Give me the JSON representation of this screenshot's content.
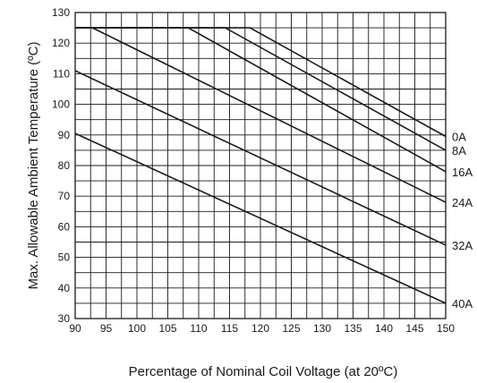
{
  "chart_data": {
    "type": "line",
    "title": "",
    "xlabel": "Percentage of Nominal Coil Voltage (at 20ºC)",
    "ylabel": "Max. Allowable  Ambient Temperature  (ºC)",
    "xlim": [
      90,
      150
    ],
    "ylim": [
      30,
      130
    ],
    "x_ticks": [
      90,
      95,
      100,
      105,
      110,
      115,
      120,
      125,
      130,
      135,
      140,
      145,
      150
    ],
    "y_ticks": [
      30,
      40,
      50,
      60,
      70,
      80,
      90,
      100,
      110,
      120,
      130
    ],
    "x_minor_step": 2.5,
    "y_minor_step": 5,
    "grid": true,
    "legend": "labels at right end of each line",
    "line_color": "#1a1a1a",
    "series": [
      {
        "name": "0A",
        "x": [
          90,
          118.3,
          150
        ],
        "y": [
          125,
          125,
          89.5
        ]
      },
      {
        "name": "8A",
        "x": [
          90,
          114.3,
          150
        ],
        "y": [
          125,
          125,
          85
        ]
      },
      {
        "name": "16A",
        "x": [
          90,
          108.3,
          150
        ],
        "y": [
          125,
          125,
          78
        ]
      },
      {
        "name": "24A",
        "x": [
          90,
          92.8,
          150
        ],
        "y": [
          125,
          125,
          68
        ]
      },
      {
        "name": "32A",
        "x": [
          90,
          150
        ],
        "y": [
          111,
          54
        ]
      },
      {
        "name": "40A",
        "x": [
          90,
          150
        ],
        "y": [
          90.5,
          35
        ]
      }
    ]
  }
}
